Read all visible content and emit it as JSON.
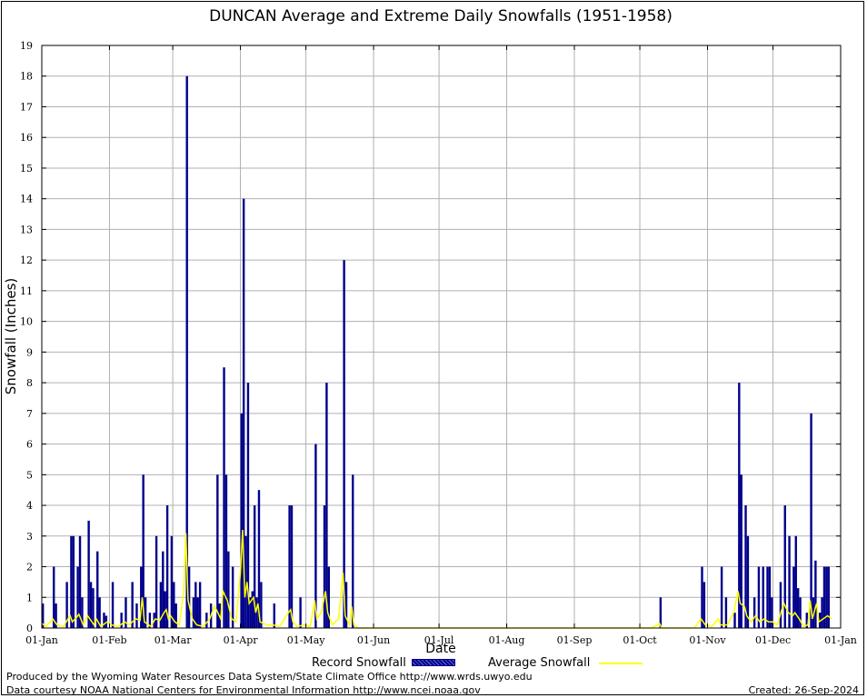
{
  "title": "DUNCAN Average and Extreme Daily Snowfalls (1951-1958)",
  "ylabel": "Snowfall (Inches)",
  "xlabel": "Date",
  "legend": {
    "record_label": "Record Snowfall",
    "average_label": "Average Snowfall"
  },
  "footer": {
    "produced_by": "Produced by the Wyoming Water Resources Data System/State Climate Office http://www.wrds.uwyo.edu",
    "courtesy": "Data courtesy NOAA National Centers for Environmental Information http://www.ncei.noaa.gov",
    "created": "Created: 26-Sep-2024"
  },
  "colors": {
    "record": "#00008b",
    "average": "#ffff00",
    "grid": "#b0b0b0"
  },
  "chart_data": {
    "type": "bar",
    "title": "DUNCAN Average and Extreme Daily Snowfalls (1951-1958)",
    "xlabel": "Date",
    "ylabel": "Snowfall (Inches)",
    "ylim": [
      0,
      19
    ],
    "xlim_days": [
      1,
      366
    ],
    "grid": true,
    "legend_position": "bottom",
    "x_ticks": [
      {
        "day": 1,
        "label": "01-Jan"
      },
      {
        "day": 32,
        "label": "01-Feb"
      },
      {
        "day": 61,
        "label": "01-Mar"
      },
      {
        "day": 92,
        "label": "01-Apr"
      },
      {
        "day": 122,
        "label": "01-May"
      },
      {
        "day": 153,
        "label": "01-Jun"
      },
      {
        "day": 183,
        "label": "01-Jul"
      },
      {
        "day": 214,
        "label": "01-Aug"
      },
      {
        "day": 245,
        "label": "01-Sep"
      },
      {
        "day": 275,
        "label": "01-Oct"
      },
      {
        "day": 306,
        "label": "01-Nov"
      },
      {
        "day": 336,
        "label": "01-Dec"
      },
      {
        "day": 367,
        "label": "01-Jan"
      }
    ],
    "y_ticks": [
      0,
      1,
      2,
      3,
      4,
      5,
      6,
      7,
      8,
      9,
      10,
      11,
      12,
      13,
      14,
      15,
      16,
      17,
      18,
      19
    ],
    "series": [
      {
        "name": "Record Snowfall",
        "kind": "bar",
        "points": [
          [
            1,
            0.8
          ],
          [
            6,
            2.0
          ],
          [
            7,
            0.8
          ],
          [
            12,
            1.5
          ],
          [
            14,
            3.0
          ],
          [
            15,
            3.0
          ],
          [
            17,
            2.0
          ],
          [
            18,
            3.0
          ],
          [
            19,
            1.0
          ],
          [
            22,
            3.5
          ],
          [
            23,
            1.5
          ],
          [
            24,
            1.3
          ],
          [
            26,
            2.5
          ],
          [
            27,
            1.0
          ],
          [
            29,
            0.5
          ],
          [
            30,
            0.4
          ],
          [
            33,
            1.5
          ],
          [
            37,
            0.5
          ],
          [
            39,
            1.0
          ],
          [
            42,
            1.5
          ],
          [
            44,
            0.8
          ],
          [
            46,
            2.0
          ],
          [
            47,
            5.0
          ],
          [
            48,
            1.0
          ],
          [
            50,
            0.5
          ],
          [
            52,
            0.5
          ],
          [
            53,
            3.0
          ],
          [
            55,
            1.5
          ],
          [
            56,
            2.5
          ],
          [
            57,
            1.2
          ],
          [
            58,
            4.0
          ],
          [
            60,
            3.0
          ],
          [
            61,
            1.5
          ],
          [
            62,
            0.8
          ],
          [
            67,
            18.0
          ],
          [
            68,
            2.0
          ],
          [
            70,
            1.0
          ],
          [
            71,
            1.5
          ],
          [
            72,
            1.0
          ],
          [
            73,
            1.5
          ],
          [
            76,
            0.5
          ],
          [
            78,
            0.8
          ],
          [
            81,
            5.0
          ],
          [
            82,
            0.8
          ],
          [
            84,
            8.5
          ],
          [
            85,
            5.0
          ],
          [
            86,
            2.5
          ],
          [
            88,
            2.0
          ],
          [
            92,
            7.0
          ],
          [
            93,
            14.0
          ],
          [
            94,
            3.0
          ],
          [
            95,
            8.0
          ],
          [
            96,
            1.0
          ],
          [
            97,
            1.2
          ],
          [
            98,
            4.0
          ],
          [
            99,
            1.0
          ],
          [
            100,
            4.5
          ],
          [
            101,
            1.5
          ],
          [
            107,
            0.8
          ],
          [
            114,
            4.0
          ],
          [
            115,
            4.0
          ],
          [
            119,
            1.0
          ],
          [
            126,
            6.0
          ],
          [
            130,
            4.0
          ],
          [
            131,
            8.0
          ],
          [
            132,
            2.0
          ],
          [
            139,
            12.0
          ],
          [
            140,
            1.5
          ],
          [
            143,
            5.0
          ],
          [
            284,
            1.0
          ],
          [
            303,
            2.0
          ],
          [
            304,
            1.5
          ],
          [
            312,
            2.0
          ],
          [
            314,
            1.0
          ],
          [
            318,
            0.5
          ],
          [
            320,
            8.0
          ],
          [
            321,
            5.0
          ],
          [
            323,
            4.0
          ],
          [
            324,
            3.0
          ],
          [
            327,
            1.0
          ],
          [
            329,
            2.0
          ],
          [
            331,
            2.0
          ],
          [
            333,
            2.0
          ],
          [
            334,
            2.0
          ],
          [
            335,
            1.0
          ],
          [
            339,
            1.5
          ],
          [
            341,
            4.0
          ],
          [
            343,
            3.0
          ],
          [
            345,
            2.0
          ],
          [
            346,
            3.0
          ],
          [
            347,
            1.3
          ],
          [
            348,
            1.0
          ],
          [
            351,
            0.5
          ],
          [
            353,
            7.0
          ],
          [
            354,
            1.0
          ],
          [
            355,
            2.2
          ],
          [
            357,
            0.5
          ],
          [
            358,
            1.0
          ],
          [
            359,
            2.0
          ],
          [
            360,
            2.0
          ],
          [
            361,
            2.0
          ]
        ]
      },
      {
        "name": "Average Snowfall",
        "kind": "line",
        "points": [
          [
            1,
            0.15
          ],
          [
            3,
            0.05
          ],
          [
            6,
            0.3
          ],
          [
            8,
            0.1
          ],
          [
            11,
            0.05
          ],
          [
            13,
            0.3
          ],
          [
            14,
            0.4
          ],
          [
            15,
            0.2
          ],
          [
            17,
            0.35
          ],
          [
            18,
            0.45
          ],
          [
            20,
            0.1
          ],
          [
            22,
            0.4
          ],
          [
            23,
            0.3
          ],
          [
            25,
            0.1
          ],
          [
            26,
            0.3
          ],
          [
            28,
            0.05
          ],
          [
            31,
            0.2
          ],
          [
            33,
            0.1
          ],
          [
            36,
            0.05
          ],
          [
            39,
            0.2
          ],
          [
            41,
            0.1
          ],
          [
            44,
            0.3
          ],
          [
            46,
            0.25
          ],
          [
            47,
            1.0
          ],
          [
            48,
            0.2
          ],
          [
            51,
            0.05
          ],
          [
            53,
            0.3
          ],
          [
            55,
            0.25
          ],
          [
            57,
            0.5
          ],
          [
            58,
            0.6
          ],
          [
            59,
            0.3
          ],
          [
            60,
            0.4
          ],
          [
            62,
            0.2
          ],
          [
            64,
            0.1
          ],
          [
            66,
            1.2
          ],
          [
            67,
            3.1
          ],
          [
            68,
            0.9
          ],
          [
            70,
            0.3
          ],
          [
            72,
            0.1
          ],
          [
            75,
            0.05
          ],
          [
            78,
            0.3
          ],
          [
            80,
            0.7
          ],
          [
            81,
            0.6
          ],
          [
            83,
            0.3
          ],
          [
            84,
            1.2
          ],
          [
            86,
            0.9
          ],
          [
            88,
            0.3
          ],
          [
            90,
            0.2
          ],
          [
            92,
            1.8
          ],
          [
            93,
            3.2
          ],
          [
            94,
            1.0
          ],
          [
            95,
            1.5
          ],
          [
            96,
            0.8
          ],
          [
            98,
            1.0
          ],
          [
            99,
            0.5
          ],
          [
            100,
            0.8
          ],
          [
            101,
            0.2
          ],
          [
            104,
            0.1
          ],
          [
            107,
            0.1
          ],
          [
            110,
            0.05
          ],
          [
            113,
            0.4
          ],
          [
            115,
            0.6
          ],
          [
            116,
            0.2
          ],
          [
            118,
            0.05
          ],
          [
            121,
            0.1
          ],
          [
            124,
            0.05
          ],
          [
            126,
            0.9
          ],
          [
            127,
            0.3
          ],
          [
            129,
            0.5
          ],
          [
            131,
            1.2
          ],
          [
            132,
            0.5
          ],
          [
            134,
            0.1
          ],
          [
            137,
            0.3
          ],
          [
            139,
            1.8
          ],
          [
            140,
            0.4
          ],
          [
            142,
            0.1
          ],
          [
            143,
            0.7
          ],
          [
            144,
            0.1
          ],
          [
            146,
            0.0
          ],
          [
            280,
            0.0
          ],
          [
            283,
            0.1
          ],
          [
            284,
            0.15
          ],
          [
            285,
            0.0
          ],
          [
            300,
            0.0
          ],
          [
            302,
            0.2
          ],
          [
            303,
            0.3
          ],
          [
            305,
            0.1
          ],
          [
            308,
            0.05
          ],
          [
            311,
            0.3
          ],
          [
            312,
            0.1
          ],
          [
            315,
            0.1
          ],
          [
            318,
            0.5
          ],
          [
            320,
            1.2
          ],
          [
            321,
            0.8
          ],
          [
            323,
            0.7
          ],
          [
            324,
            0.4
          ],
          [
            326,
            0.2
          ],
          [
            328,
            0.4
          ],
          [
            330,
            0.2
          ],
          [
            332,
            0.3
          ],
          [
            334,
            0.2
          ],
          [
            336,
            0.2
          ],
          [
            338,
            0.1
          ],
          [
            340,
            0.6
          ],
          [
            341,
            0.8
          ],
          [
            343,
            0.5
          ],
          [
            345,
            0.4
          ],
          [
            346,
            0.5
          ],
          [
            348,
            0.3
          ],
          [
            350,
            0.05
          ],
          [
            352,
            0.1
          ],
          [
            353,
            0.9
          ],
          [
            354,
            0.3
          ],
          [
            356,
            0.8
          ],
          [
            357,
            0.2
          ],
          [
            359,
            0.3
          ],
          [
            361,
            0.4
          ],
          [
            363,
            0.3
          ]
        ]
      }
    ]
  }
}
